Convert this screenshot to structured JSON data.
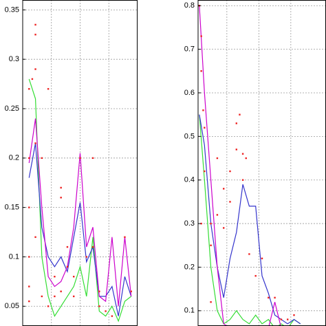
{
  "chart_data": [
    {
      "type": "line",
      "grid": true,
      "xlim": [
        0,
        18
      ],
      "xticks": [
        4.5,
        9,
        13.5
      ],
      "ylim": [
        0.03,
        0.36
      ],
      "yticks": [
        0.05,
        0.1,
        0.15,
        0.2,
        0.25,
        0.3,
        0.35
      ],
      "x": [
        1,
        2,
        3,
        4,
        5,
        6,
        7,
        8,
        9,
        10,
        11,
        12,
        13,
        14,
        15,
        16,
        17
      ],
      "series": [
        {
          "color": "#33dd33",
          "values": [
            0.28,
            0.26,
            0.1,
            0.06,
            0.04,
            0.05,
            0.06,
            0.07,
            0.09,
            0.06,
            0.12,
            0.045,
            0.04,
            0.05,
            0.035,
            0.055,
            0.06
          ]
        },
        {
          "color": "#3333cc",
          "values": [
            0.18,
            0.215,
            0.13,
            0.1,
            0.09,
            0.1,
            0.085,
            0.12,
            0.155,
            0.095,
            0.11,
            0.06,
            0.06,
            0.07,
            0.04,
            0.08,
            0.06
          ]
        },
        {
          "color": "#cc00cc",
          "values": [
            0.195,
            0.24,
            0.15,
            0.08,
            0.07,
            0.075,
            0.09,
            0.13,
            0.205,
            0.11,
            0.13,
            0.06,
            0.055,
            0.12,
            0.05,
            0.12,
            0.06
          ]
        }
      ],
      "points": {
        "color": "#ee2222",
        "x": [
          1,
          1,
          1,
          1,
          1,
          1.5,
          2,
          2,
          2,
          2,
          3,
          3,
          4,
          4,
          5,
          5,
          6,
          6,
          6,
          7,
          7,
          8,
          8,
          9,
          10,
          11,
          11,
          12,
          12,
          13,
          14,
          16,
          17,
          1,
          2
        ],
        "values": [
          0.2,
          0.15,
          0.1,
          0.07,
          0.27,
          0.28,
          0.335,
          0.325,
          0.29,
          0.12,
          0.06,
          0.2,
          0.27,
          0.05,
          0.06,
          0.08,
          0.16,
          0.17,
          0.065,
          0.09,
          0.11,
          0.08,
          0.06,
          0.2,
          0.1,
          0.2,
          0.11,
          0.05,
          0.065,
          0.045,
          0.04,
          0.12,
          0.065,
          0.055,
          0.215
        ]
      }
    },
    {
      "type": "line",
      "grid": true,
      "xlim": [
        0,
        20
      ],
      "xticks": [
        4.5,
        9.5,
        14.5
      ],
      "ylim": [
        0.065,
        0.813
      ],
      "yticks": [
        0.1,
        0.2,
        0.3,
        0.4,
        0.5,
        0.6,
        0.7,
        0.8
      ],
      "x": [
        0.2,
        1,
        2,
        3,
        4,
        5,
        6,
        7,
        8,
        9,
        10,
        11,
        12,
        13,
        14,
        15,
        16
      ],
      "series": [
        {
          "color": "#33dd33",
          "values": [
            0.55,
            0.4,
            0.2,
            0.1,
            0.07,
            0.08,
            0.1,
            0.08,
            0.07,
            0.09,
            0.07,
            0.08,
            0.06,
            0.07,
            0.06,
            0.08,
            0.07
          ]
        },
        {
          "color": "#3333cc",
          "values": [
            0.55,
            0.48,
            0.3,
            0.2,
            0.13,
            0.22,
            0.28,
            0.39,
            0.34,
            0.34,
            0.18,
            0.14,
            0.09,
            0.08,
            0.07,
            0.08,
            0.07
          ]
        },
        {
          "color": "#cc00cc",
          "values": [
            0.8,
            0.6,
            0.4,
            0.2,
            0.07,
            0.06,
            0.05,
            0.05,
            0.05,
            0.05,
            0.05,
            0.06,
            0.12,
            0.06,
            0.05,
            0.05,
            0.05
          ]
        }
      ],
      "points": {
        "color": "#ee2222",
        "x": [
          0.2,
          0.5,
          0.5,
          0.8,
          1,
          1,
          0.5,
          2,
          2,
          2,
          3,
          3,
          4,
          4,
          5,
          5,
          6,
          6,
          6.5,
          7,
          7,
          7.5,
          8,
          9,
          10,
          11,
          12,
          13,
          14,
          15
        ],
        "values": [
          0.8,
          0.73,
          0.65,
          0.56,
          0.52,
          0.42,
          0.3,
          0.3,
          0.25,
          0.12,
          0.45,
          0.32,
          0.38,
          0.29,
          0.42,
          0.35,
          0.47,
          0.53,
          0.55,
          0.4,
          0.46,
          0.45,
          0.23,
          0.18,
          0.22,
          0.13,
          0.13,
          0.08,
          0.08,
          0.09
        ]
      }
    }
  ]
}
